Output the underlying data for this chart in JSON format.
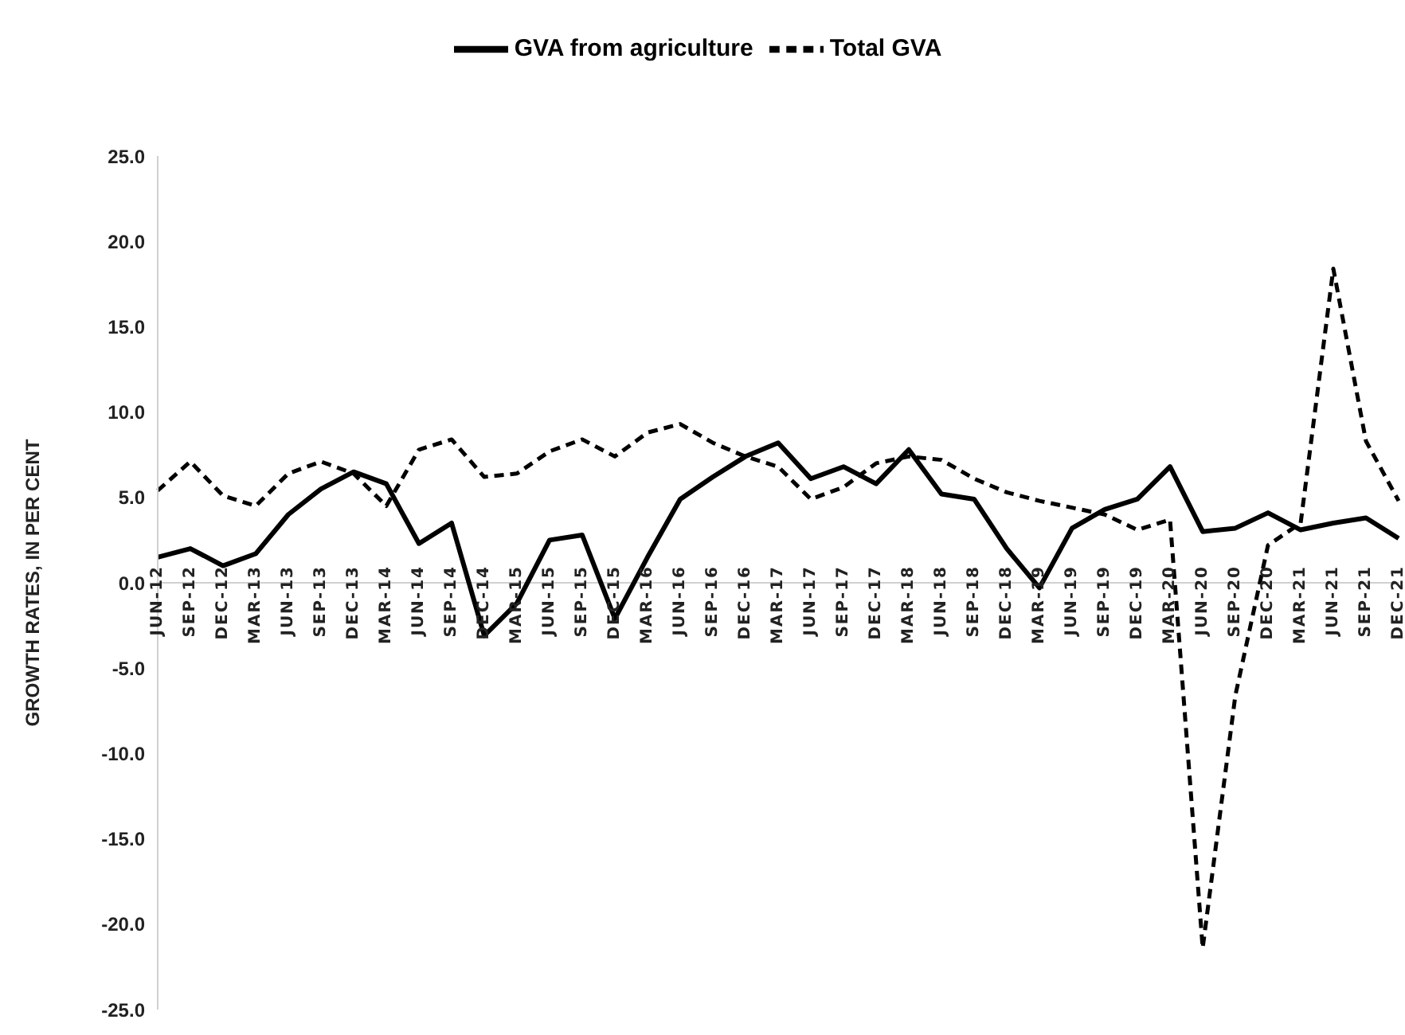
{
  "chart_data": {
    "type": "line",
    "ylabel": "GROWTH RATES, IN PER CENT",
    "categories": [
      "JUN-12",
      "SEP-12",
      "DEC-12",
      "MAR-13",
      "JUN-13",
      "SEP-13",
      "DEC-13",
      "MAR-14",
      "JUN-14",
      "SEP-14",
      "DEC-14",
      "MAR-15",
      "JUN-15",
      "SEP-15",
      "DEC-15",
      "MAR-16",
      "JUN-16",
      "SEP-16",
      "DEC-16",
      "MAR-17",
      "JUN-17",
      "SEP-17",
      "DEC-17",
      "MAR-18",
      "JUN-18",
      "SEP-18",
      "DEC-18",
      "MAR-19",
      "JUN-19",
      "SEP-19",
      "DEC-19",
      "MAR-20",
      "JUN-20",
      "SEP-20",
      "DEC-20",
      "MAR-21",
      "JUN-21",
      "SEP-21",
      "DEC-21"
    ],
    "series": [
      {
        "name": "Total GVA",
        "color": "#000000",
        "line_style": "dashed",
        "values": [
          5.4,
          7.1,
          5.1,
          4.5,
          6.4,
          7.1,
          6.4,
          4.5,
          7.8,
          8.4,
          6.2,
          6.4,
          7.7,
          8.4,
          7.4,
          8.8,
          9.3,
          8.2,
          7.4,
          6.8,
          4.9,
          5.6,
          7.0,
          7.4,
          7.2,
          6.1,
          5.3,
          4.8,
          4.4,
          4.0,
          3.1,
          3.7,
          -21.4,
          -6.6,
          2.2,
          3.5,
          18.4,
          8.3,
          4.8
        ]
      },
      {
        "name": "GVA from agriculture",
        "color": "#000000",
        "line_style": "solid",
        "values": [
          1.5,
          2.0,
          1.0,
          1.7,
          4.0,
          5.5,
          6.5,
          5.8,
          2.3,
          3.5,
          -3.1,
          -1.2,
          2.5,
          2.8,
          -2.1,
          1.5,
          4.9,
          6.2,
          7.4,
          8.2,
          6.1,
          6.8,
          5.8,
          7.8,
          5.2,
          4.9,
          2.0,
          -0.3,
          3.2,
          4.3,
          4.9,
          6.8,
          3.0,
          3.2,
          4.1,
          3.1,
          3.5,
          3.8,
          2.6
        ]
      }
    ],
    "ylim": [
      -25,
      25
    ],
    "yticks": [
      {
        "value": -25,
        "label": "-25.0"
      },
      {
        "value": -20,
        "label": "-20.0"
      },
      {
        "value": -15,
        "label": "-15.0"
      },
      {
        "value": -10,
        "label": "-10.0"
      },
      {
        "value": -5,
        "label": "-5.0"
      },
      {
        "value": 0,
        "label": "0.0"
      },
      {
        "value": 5,
        "label": "5.0"
      },
      {
        "value": 10,
        "label": "10.0"
      },
      {
        "value": 15,
        "label": "15.0"
      },
      {
        "value": 20,
        "label": "20.0"
      },
      {
        "value": 25,
        "label": "25.0"
      }
    ],
    "grid": false,
    "legend": "top",
    "marker": "none"
  }
}
